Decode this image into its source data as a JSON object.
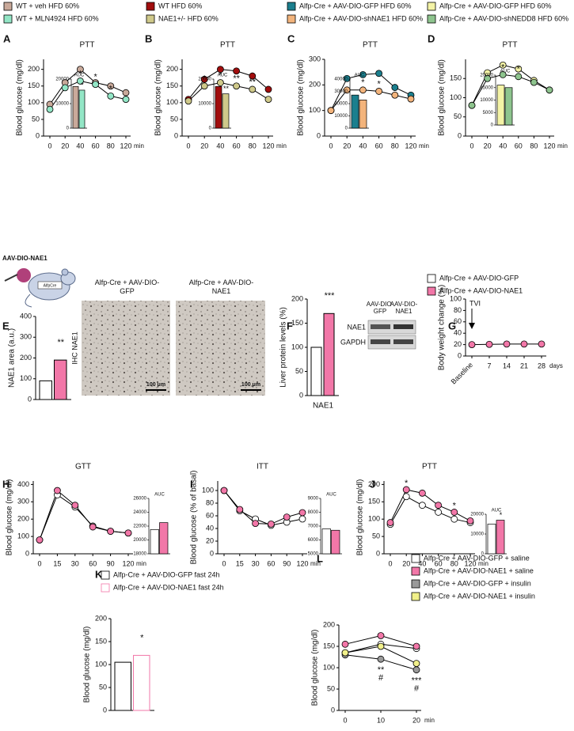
{
  "figure": {
    "construct_label": "AAV-DIO-NAE1",
    "mouse_label": "AlfpCre",
    "legend": [
      {
        "name": "Alfp-Cre + AAV-DIO-GFP",
        "color": "#ffffff"
      },
      {
        "name": "Alfp-Cre + AAV-DIO-NAE1",
        "color": "#f277a8"
      }
    ],
    "ihc": {
      "row_label": "IHC NAE1",
      "panels": [
        "Alfp-Cre + AAV-DIO-GFP",
        "Alfp-Cre + AAV-DIO-NAE1"
      ],
      "scale_bar": "100 μm"
    },
    "blot": {
      "lanes": [
        "AAV-DIO-GFP",
        "AAV-DIO-NAE1"
      ],
      "rows": [
        "NAE1",
        "GAPDH"
      ]
    }
  },
  "chart_data": [
    {
      "type": "line",
      "panel": "A",
      "title": "PTT",
      "y_label": "Blood glucose (mg/dl)",
      "x_unit": "min",
      "categories": [
        0,
        20,
        40,
        60,
        80,
        120
      ],
      "ylim": [
        0,
        230
      ],
      "yticks": [
        0,
        50,
        100,
        150,
        200
      ],
      "series": [
        {
          "name": "WT + veh HFD 60%",
          "color": "#c9a99a",
          "values": [
            95,
            160,
            200,
            160,
            150,
            130
          ]
        },
        {
          "name": "WT + MLN4924 HFD 60%",
          "color": "#93e6c6",
          "values": [
            80,
            145,
            165,
            155,
            120,
            110
          ]
        }
      ],
      "annotations": [
        {
          "text": "*",
          "at": 2
        },
        {
          "text": "*",
          "at": 3
        },
        {
          "text": "*",
          "at": 4
        }
      ],
      "inset": {
        "title": "AUC",
        "values": [
          17000,
          15500
        ],
        "ylim": [
          0,
          20000
        ],
        "yticks": [
          0,
          10000,
          20000
        ],
        "labels": [
          null,
          "*"
        ]
      }
    },
    {
      "type": "line",
      "panel": "B",
      "title": "PTT",
      "y_label": "Blood glucose (mg/dl)",
      "x_unit": "min",
      "categories": [
        0,
        20,
        40,
        60,
        80,
        120
      ],
      "ylim": [
        0,
        230
      ],
      "yticks": [
        0,
        50,
        100,
        150,
        200
      ],
      "series": [
        {
          "name": "WT HFD 60%",
          "color": "#a10d0d",
          "values": [
            110,
            170,
            200,
            195,
            180,
            140
          ]
        },
        {
          "name": "NAE1+/- HFD 60%",
          "color": "#cfc98a",
          "values": [
            105,
            150,
            160,
            150,
            140,
            110
          ]
        }
      ],
      "annotations": [
        {
          "text": "*",
          "at": 1
        },
        {
          "text": "*",
          "at": 2
        },
        {
          "text": "**",
          "at": 3
        },
        {
          "text": "**",
          "at": 4
        }
      ],
      "inset": {
        "title": "AUC",
        "values": [
          17000,
          14000
        ],
        "ylim": [
          0,
          20000
        ],
        "yticks": [
          0,
          10000,
          20000
        ],
        "labels": [
          null,
          "**"
        ]
      }
    },
    {
      "type": "line",
      "panel": "C",
      "title": "PTT",
      "y_label": "Blood glucose (mg/dl)",
      "x_unit": "min",
      "categories": [
        0,
        20,
        40,
        60,
        80,
        120
      ],
      "ylim": [
        0,
        300
      ],
      "yticks": [
        0,
        100,
        200,
        300
      ],
      "series": [
        {
          "name": "Alfp-Cre + AAV-DIO-GFP HFD 60%",
          "color": "#1b7f8e",
          "values": [
            100,
            225,
            240,
            245,
            190,
            160
          ]
        },
        {
          "name": "Alfp-Cre + AAV-DIO-shNAE1 HFD 60%",
          "color": "#f3b47c",
          "values": [
            100,
            180,
            180,
            175,
            160,
            145
          ]
        }
      ],
      "annotations": [
        {
          "text": "*",
          "at": 2
        },
        {
          "text": "*",
          "at": 3
        }
      ],
      "inset": {
        "title": "AUC",
        "values": [
          27000,
          23000
        ],
        "ylim": [
          0,
          40000
        ],
        "yticks": [
          0,
          10000,
          20000,
          30000,
          40000
        ],
        "labels": [
          null,
          null
        ]
      }
    },
    {
      "type": "line",
      "panel": "D",
      "title": "PTT",
      "y_label": "Blood glucose (mg/dl)",
      "x_unit": "min",
      "categories": [
        0,
        20,
        40,
        60,
        80,
        120
      ],
      "ylim": [
        0,
        200
      ],
      "yticks": [
        0,
        50,
        100,
        150
      ],
      "series": [
        {
          "name": "Alfp-Cre + AAV-DIO-GFP HFD 60%",
          "color": "#f4f3a6",
          "values": [
            80,
            165,
            185,
            175,
            145,
            120
          ]
        },
        {
          "name": "Alfp-Cre + AAV-DIO-shNEDD8 HFD 60%",
          "color": "#8ec48e",
          "values": [
            80,
            150,
            160,
            155,
            140,
            120
          ]
        }
      ],
      "annotations": [
        {
          "text": "*",
          "at": 2
        },
        {
          "text": "*",
          "at": 3
        }
      ],
      "inset": {
        "title": "AUC",
        "values": [
          16000,
          15000
        ],
        "ylim": [
          0,
          20000
        ],
        "yticks": [
          0,
          5000,
          10000,
          15000,
          20000
        ],
        "labels": [
          null,
          null
        ]
      }
    },
    {
      "type": "bar",
      "panel": "E",
      "y_label": "NAE1 area (a.u.)",
      "ylim": [
        0,
        400
      ],
      "yticks": [
        0,
        100,
        200,
        300,
        400
      ],
      "series": [
        {
          "color": "#ffffff",
          "edgecolor": "#000000",
          "values": [
            90
          ]
        },
        {
          "color": "#f277a8",
          "edgecolor": "#000000",
          "values": [
            190
          ]
        }
      ],
      "annotations": [
        {
          "text": "**",
          "at": 0
        }
      ]
    },
    {
      "type": "bar",
      "panel": "F",
      "y_label": "Liver protein levels (%)",
      "categories": [
        "NAE1"
      ],
      "ylim": [
        0,
        200
      ],
      "yticks": [
        0,
        50,
        100,
        150,
        200
      ],
      "series": [
        {
          "color": "#ffffff",
          "edgecolor": "#000000",
          "values": [
            100
          ]
        },
        {
          "color": "#f277a8",
          "edgecolor": "#000000",
          "values": [
            170
          ]
        }
      ],
      "annotations": [
        {
          "text": "***",
          "at": 0
        }
      ]
    },
    {
      "type": "line",
      "panel": "G",
      "y_label": "Body weight change (%)",
      "x_unit": "days",
      "categories": [
        "Baseline",
        7,
        14,
        21,
        28
      ],
      "ylim": [
        0,
        100
      ],
      "yticks": [
        0,
        20,
        40,
        60,
        80,
        100
      ],
      "series": [
        {
          "color": "#f277a8",
          "values": [
            20,
            20.5,
            21,
            21,
            21
          ]
        }
      ],
      "arrow_annotation": {
        "text": "TVI",
        "at": 0
      }
    },
    {
      "type": "line",
      "panel": "H",
      "title": "GTT",
      "y_label": "Blood glucose (mg/dl)",
      "x_unit": "min",
      "categories": [
        0,
        15,
        30,
        60,
        90,
        120
      ],
      "ylim": [
        0,
        420
      ],
      "yticks": [
        0,
        100,
        200,
        300,
        400
      ],
      "series": [
        {
          "color": "#ffffff",
          "values": [
            80,
            340,
            270,
            160,
            130,
            120
          ]
        },
        {
          "color": "#f277a8",
          "values": [
            80,
            365,
            280,
            155,
            130,
            120
          ]
        }
      ],
      "inset": {
        "title": "AUC",
        "values": [
          21500,
          22500
        ],
        "ylim": [
          18000,
          26000
        ],
        "yticks": [
          18000,
          20000,
          22000,
          24000,
          26000
        ],
        "labels": [
          null,
          null
        ]
      }
    },
    {
      "type": "line",
      "panel": "I",
      "title": "ITT",
      "y_label": "Blood glucose (% of basal)",
      "x_unit": "min",
      "categories": [
        0,
        15,
        30,
        60,
        90,
        120
      ],
      "ylim": [
        0,
        115
      ],
      "yticks": [
        0,
        20,
        40,
        60,
        80,
        100
      ],
      "series": [
        {
          "color": "#ffffff",
          "values": [
            100,
            68,
            55,
            45,
            50,
            55
          ]
        },
        {
          "color": "#f277a8",
          "values": [
            100,
            70,
            48,
            47,
            58,
            65
          ]
        }
      ],
      "inset": {
        "title": "AUC",
        "values": [
          6800,
          6700
        ],
        "ylim": [
          5000,
          9000
        ],
        "yticks": [
          5000,
          6000,
          7000,
          8000,
          9000
        ],
        "labels": [
          null,
          null
        ]
      }
    },
    {
      "type": "line",
      "panel": "J",
      "title": "PTT",
      "y_label": "Blood glucose (mg/dl)",
      "x_unit": "min",
      "categories": [
        0,
        20,
        40,
        60,
        80,
        120
      ],
      "ylim": [
        0,
        210
      ],
      "yticks": [
        0,
        50,
        100,
        150,
        200
      ],
      "series": [
        {
          "color": "#ffffff",
          "values": [
            85,
            165,
            140,
            120,
            100,
            90
          ]
        },
        {
          "color": "#f277a8",
          "values": [
            90,
            185,
            175,
            140,
            120,
            95
          ]
        }
      ],
      "annotations": [
        {
          "text": "*",
          "at": 1,
          "above": true
        },
        {
          "text": "*",
          "at": 4,
          "above": true
        }
      ],
      "inset": {
        "title": "AUC",
        "values": [
          15000,
          17000
        ],
        "ylim": [
          0,
          20000
        ],
        "yticks": [
          0,
          10000,
          20000
        ],
        "labels": [
          null,
          "*"
        ]
      }
    },
    {
      "type": "bar",
      "panel": "K",
      "y_label": "Blood glucose (mg/dl)",
      "ylim": [
        0,
        200
      ],
      "yticks": [
        0,
        50,
        100,
        150,
        200
      ],
      "series": [
        {
          "name": "Alfp-Cre + AAV-DIO-GFP fast 24h",
          "color": "#ffffff",
          "edgecolor": "#000000",
          "values": [
            105
          ]
        },
        {
          "name": "Alfp-Cre + AAV-DIO-NAE1 fast 24h",
          "color": "#ffffff",
          "edgecolor": "#f277a8",
          "values": [
            120
          ]
        }
      ],
      "annotations": [
        {
          "text": "*",
          "at": 0
        }
      ]
    },
    {
      "type": "line",
      "panel": "L",
      "y_label": "Blood glucose (mg/dl)",
      "x_unit": "min",
      "categories": [
        0,
        10,
        20
      ],
      "ylim": [
        0,
        200
      ],
      "yticks": [
        0,
        50,
        100,
        150,
        200
      ],
      "annotation_side": "below",
      "series": [
        {
          "name": "Alfp-Cre + AAV-DIO-GFP + saline",
          "color": "#ffffff",
          "values": [
            135,
            155,
            145
          ]
        },
        {
          "name": "Alfp-Cre + AAV-DIO-NAE1 + saline",
          "color": "#f277a8",
          "values": [
            155,
            175,
            150
          ]
        },
        {
          "name": "Alfp-Cre + AAV-DIO-GFP + insulin",
          "color": "#9a9a9a",
          "values": [
            130,
            120,
            95
          ]
        },
        {
          "name": "Alfp-Cre + AAV-DIO-NAE1 + insulin",
          "color": "#f1f08a",
          "values": [
            135,
            150,
            110
          ]
        }
      ],
      "annotations": [
        {
          "text": "**",
          "at": 1
        },
        {
          "text": "#",
          "at": 1
        },
        {
          "text": "***",
          "at": 2
        },
        {
          "text": "#",
          "at": 2
        }
      ]
    }
  ]
}
